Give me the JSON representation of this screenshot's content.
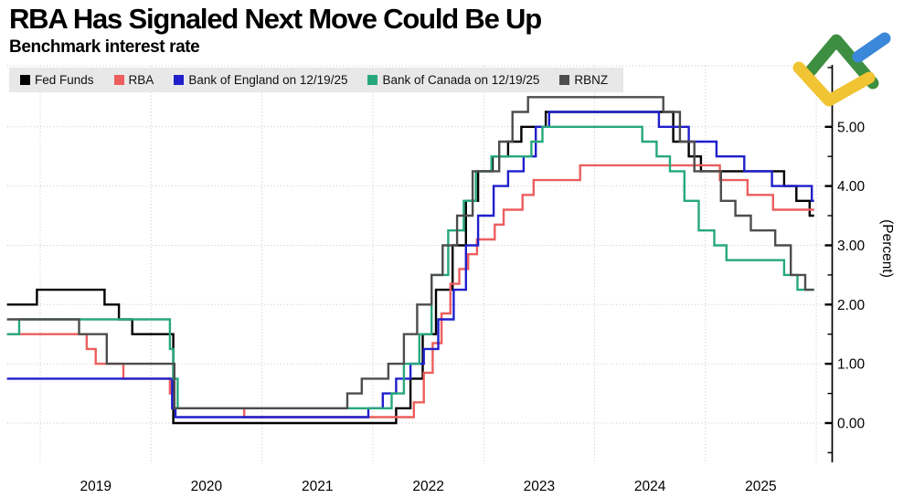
{
  "header": {
    "title": "RBA Has Signaled Next Move Could Be Up",
    "subtitle": "Benchmark interest rate"
  },
  "legend": {
    "position": "top",
    "background": "#e8e8e8",
    "items": [
      {
        "label": "Fed Funds",
        "color": "#000000"
      },
      {
        "label": "RBA",
        "color": "#ec5e5e"
      },
      {
        "label": "Bank of England on 12/19/25",
        "color": "#1f1fcb"
      },
      {
        "label": "Bank of Canada on 12/19/25",
        "color": "#27a87c"
      },
      {
        "label": "RBNZ",
        "color": "#4d4d4d"
      }
    ]
  },
  "logo": {
    "name": "broker-brand-mark",
    "green": "#3e8e41",
    "blue": "#3b87d9",
    "yellow": "#f0c433"
  },
  "chart_data": {
    "type": "line",
    "step": true,
    "title": "RBA Has Signaled Next Move Could Be Up",
    "subtitle": "Benchmark interest rate",
    "xlabel": "",
    "ylabel": "(Percent)",
    "grid": "dotted",
    "grid_color": "#c6c6c6",
    "axis_color": "#000000",
    "legend_position": "top",
    "x_range": [
      2018.7,
      2025.98
    ],
    "x_gridline_years": [
      2019,
      2020,
      2021,
      2022,
      2023,
      2024,
      2025,
      2026
    ],
    "x_year_labels": [
      "2019",
      "2020",
      "2021",
      "2022",
      "2023",
      "2024",
      "2025"
    ],
    "ylim": [
      -0.65,
      6.05
    ],
    "y_major_ticks": [
      0,
      1,
      2,
      3,
      4,
      5
    ],
    "y_tick_labels": [
      "0.00",
      "1.00",
      "2.00",
      "3.00",
      "4.00",
      "5.00"
    ],
    "y_minor_tick_step": 0.5,
    "series": [
      {
        "name": "Fed Funds",
        "color": "#000000",
        "points": [
          [
            2018.7,
            2.0
          ],
          [
            2018.97,
            2.25
          ],
          [
            2019.58,
            2.0
          ],
          [
            2019.71,
            1.75
          ],
          [
            2019.83,
            1.5
          ],
          [
            2020.2,
            0.0
          ],
          [
            2022.21,
            0.25
          ],
          [
            2022.34,
            0.75
          ],
          [
            2022.45,
            1.5
          ],
          [
            2022.57,
            2.25
          ],
          [
            2022.72,
            3.0
          ],
          [
            2022.84,
            3.75
          ],
          [
            2022.95,
            4.25
          ],
          [
            2023.08,
            4.5
          ],
          [
            2023.22,
            4.75
          ],
          [
            2023.34,
            5.0
          ],
          [
            2023.56,
            5.25
          ],
          [
            2024.71,
            4.75
          ],
          [
            2024.85,
            4.5
          ],
          [
            2024.96,
            4.25
          ],
          [
            2025.71,
            4.0
          ],
          [
            2025.82,
            3.75
          ],
          [
            2025.94,
            3.5
          ]
        ]
      },
      {
        "name": "RBA",
        "color": "#ec5e5e",
        "points": [
          [
            2018.7,
            1.5
          ],
          [
            2019.42,
            1.25
          ],
          [
            2019.5,
            1.0
          ],
          [
            2019.75,
            0.75
          ],
          [
            2020.17,
            0.5
          ],
          [
            2020.21,
            0.25
          ],
          [
            2020.84,
            0.1
          ],
          [
            2022.37,
            0.35
          ],
          [
            2022.46,
            0.85
          ],
          [
            2022.54,
            1.35
          ],
          [
            2022.62,
            1.85
          ],
          [
            2022.7,
            2.35
          ],
          [
            2022.78,
            2.6
          ],
          [
            2022.86,
            2.85
          ],
          [
            2022.94,
            3.1
          ],
          [
            2023.1,
            3.35
          ],
          [
            2023.18,
            3.6
          ],
          [
            2023.35,
            3.85
          ],
          [
            2023.45,
            4.1
          ],
          [
            2023.87,
            4.35
          ],
          [
            2025.13,
            4.1
          ],
          [
            2025.38,
            3.85
          ],
          [
            2025.61,
            3.6
          ]
        ]
      },
      {
        "name": "Bank of England on 12/19/25",
        "color": "#1f1fcb",
        "points": [
          [
            2018.7,
            0.75
          ],
          [
            2020.19,
            0.25
          ],
          [
            2020.22,
            0.1
          ],
          [
            2021.96,
            0.25
          ],
          [
            2022.09,
            0.5
          ],
          [
            2022.21,
            0.75
          ],
          [
            2022.34,
            1.0
          ],
          [
            2022.46,
            1.25
          ],
          [
            2022.59,
            1.75
          ],
          [
            2022.73,
            2.25
          ],
          [
            2022.84,
            3.0
          ],
          [
            2022.95,
            3.5
          ],
          [
            2023.09,
            4.0
          ],
          [
            2023.22,
            4.25
          ],
          [
            2023.36,
            4.5
          ],
          [
            2023.47,
            5.0
          ],
          [
            2023.59,
            5.25
          ],
          [
            2024.58,
            5.0
          ],
          [
            2024.85,
            4.75
          ],
          [
            2025.1,
            4.5
          ],
          [
            2025.35,
            4.25
          ],
          [
            2025.6,
            4.0
          ],
          [
            2025.96,
            3.75
          ]
        ]
      },
      {
        "name": "Bank of Canada on 12/19/25",
        "color": "#27a87c",
        "points": [
          [
            2018.7,
            1.5
          ],
          [
            2018.81,
            1.75
          ],
          [
            2020.17,
            1.25
          ],
          [
            2020.2,
            0.75
          ],
          [
            2020.24,
            0.25
          ],
          [
            2022.17,
            0.5
          ],
          [
            2022.28,
            1.0
          ],
          [
            2022.42,
            1.5
          ],
          [
            2022.53,
            2.5
          ],
          [
            2022.68,
            3.25
          ],
          [
            2022.82,
            3.75
          ],
          [
            2022.93,
            4.25
          ],
          [
            2023.07,
            4.5
          ],
          [
            2023.43,
            4.75
          ],
          [
            2023.53,
            5.0
          ],
          [
            2024.43,
            4.75
          ],
          [
            2024.56,
            4.5
          ],
          [
            2024.68,
            4.25
          ],
          [
            2024.81,
            3.75
          ],
          [
            2024.94,
            3.25
          ],
          [
            2025.08,
            3.0
          ],
          [
            2025.19,
            2.75
          ],
          [
            2025.71,
            2.5
          ],
          [
            2025.83,
            2.25
          ]
        ]
      },
      {
        "name": "RBNZ",
        "color": "#4d4d4d",
        "points": [
          [
            2018.7,
            1.75
          ],
          [
            2019.35,
            1.5
          ],
          [
            2019.6,
            1.0
          ],
          [
            2020.21,
            0.25
          ],
          [
            2021.77,
            0.5
          ],
          [
            2021.9,
            0.75
          ],
          [
            2022.14,
            1.0
          ],
          [
            2022.28,
            1.5
          ],
          [
            2022.4,
            2.0
          ],
          [
            2022.53,
            2.5
          ],
          [
            2022.63,
            3.0
          ],
          [
            2022.76,
            3.5
          ],
          [
            2022.9,
            4.25
          ],
          [
            2023.14,
            4.75
          ],
          [
            2023.26,
            5.25
          ],
          [
            2023.4,
            5.5
          ],
          [
            2024.62,
            5.25
          ],
          [
            2024.77,
            4.75
          ],
          [
            2024.9,
            4.25
          ],
          [
            2025.14,
            3.75
          ],
          [
            2025.27,
            3.5
          ],
          [
            2025.41,
            3.25
          ],
          [
            2025.63,
            3.0
          ],
          [
            2025.77,
            2.5
          ],
          [
            2025.9,
            2.25
          ]
        ]
      }
    ]
  }
}
